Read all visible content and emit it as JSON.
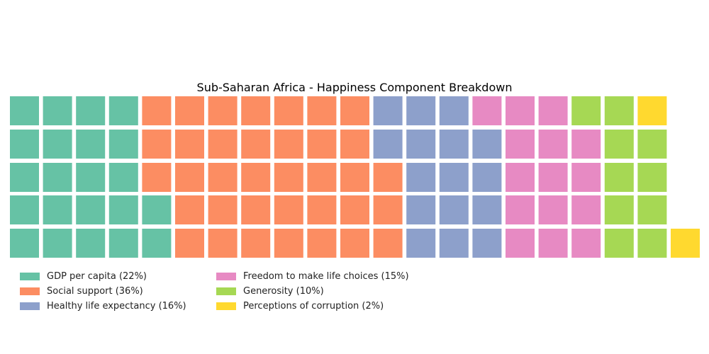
{
  "chart_data": {
    "type": "waffle",
    "title": "Sub-Saharan Africa - Happiness Component Breakdown",
    "rows": 5,
    "series": [
      {
        "name": "GDP per capita (22%)",
        "percent": 22,
        "count": 22,
        "color": "#66c2a5"
      },
      {
        "name": "Social support (36%)",
        "percent": 36,
        "count": 36,
        "color": "#fc8d62"
      },
      {
        "name": "Healthy life expectancy (16%)",
        "percent": 16,
        "count": 16,
        "color": "#8da0cb"
      },
      {
        "name": "Freedom to make life choices (15%)",
        "percent": 15,
        "count": 15,
        "color": "#e78ac3"
      },
      {
        "name": "Generosity (10%)",
        "percent": 10,
        "count": 10,
        "color": "#a6d854"
      },
      {
        "name": "Perceptions of corruption (2%)",
        "percent": 2,
        "count": 2,
        "color": "#ffd92f"
      }
    ],
    "legend": "bottom-left",
    "axes": false
  }
}
